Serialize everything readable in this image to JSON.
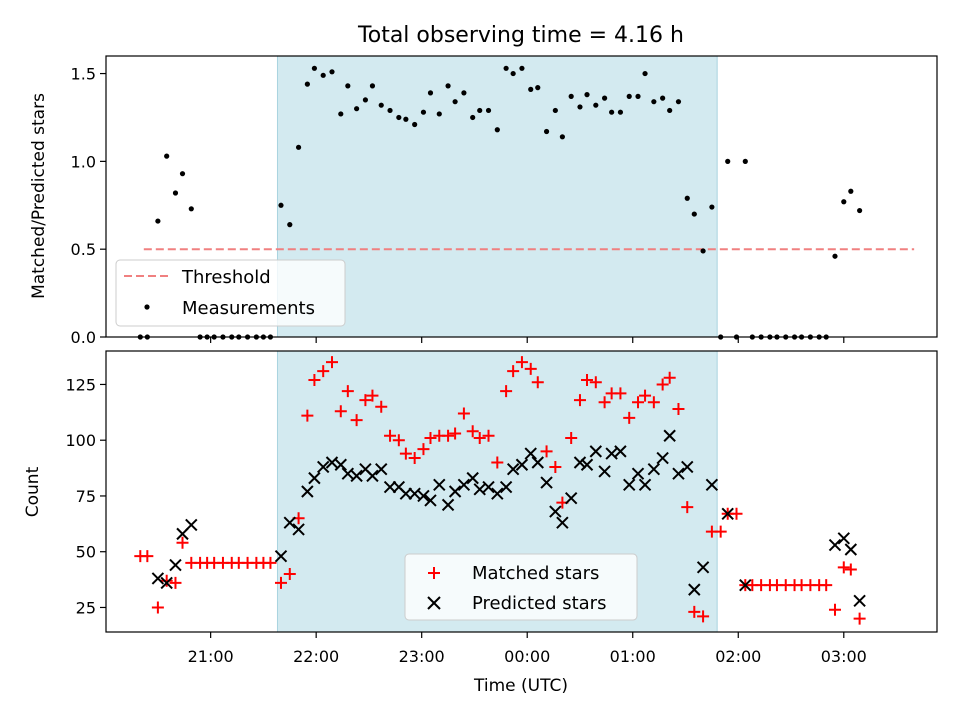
{
  "title": "Total observing time = 4.16 h",
  "xlabel": "Time (UTC)",
  "x_ticks": [
    "21:00",
    "22:00",
    "23:00",
    "00:00",
    "01:00",
    "02:00",
    "03:00"
  ],
  "colors": {
    "highlight": "#d3eaf0",
    "highlight_edge": "#a9d3df",
    "threshold": "#f08080",
    "measurement": "#000000",
    "matched": "#ff0000",
    "predicted": "#000000"
  },
  "chart_data": [
    {
      "type": "scatter",
      "ylabel": "Matched/Predicted stars",
      "ylim": [
        0,
        1.6
      ],
      "yticks": [
        0.0,
        0.5,
        1.0,
        1.5
      ],
      "highlight_x": [
        "21:38",
        "01:48"
      ],
      "threshold": {
        "value": 0.5,
        "x_range": [
          "20:22",
          "03:40"
        ]
      },
      "legend": {
        "position": "lower-left",
        "entries": [
          "Threshold",
          "Measurements"
        ]
      },
      "series": [
        {
          "name": "Measurements",
          "points": [
            [
              "20:20",
              0.0
            ],
            [
              "20:24",
              0.0
            ],
            [
              "20:30",
              0.66
            ],
            [
              "20:35",
              1.03
            ],
            [
              "20:40",
              0.82
            ],
            [
              "20:44",
              0.93
            ],
            [
              "20:49",
              0.73
            ],
            [
              "20:54",
              0.0
            ],
            [
              "20:58",
              0.0
            ],
            [
              "21:02",
              0.0
            ],
            [
              "21:07",
              0.0
            ],
            [
              "21:12",
              0.0
            ],
            [
              "21:16",
              0.0
            ],
            [
              "21:21",
              0.0
            ],
            [
              "21:26",
              0.0
            ],
            [
              "21:30",
              0.0
            ],
            [
              "21:34",
              0.0
            ],
            [
              "21:40",
              0.75
            ],
            [
              "21:45",
              0.64
            ],
            [
              "21:50",
              1.08
            ],
            [
              "21:55",
              1.44
            ],
            [
              "21:59",
              1.53
            ],
            [
              "22:04",
              1.49
            ],
            [
              "22:09",
              1.51
            ],
            [
              "22:14",
              1.27
            ],
            [
              "22:18",
              1.43
            ],
            [
              "22:23",
              1.3
            ],
            [
              "22:28",
              1.35
            ],
            [
              "22:32",
              1.43
            ],
            [
              "22:37",
              1.32
            ],
            [
              "22:42",
              1.29
            ],
            [
              "22:47",
              1.25
            ],
            [
              "22:51",
              1.24
            ],
            [
              "22:56",
              1.21
            ],
            [
              "23:01",
              1.28
            ],
            [
              "23:05",
              1.39
            ],
            [
              "23:10",
              1.27
            ],
            [
              "23:15",
              1.43
            ],
            [
              "23:19",
              1.34
            ],
            [
              "23:24",
              1.39
            ],
            [
              "23:29",
              1.25
            ],
            [
              "23:33",
              1.29
            ],
            [
              "23:38",
              1.29
            ],
            [
              "23:43",
              1.18
            ],
            [
              "23:48",
              1.53
            ],
            [
              "23:52",
              1.5
            ],
            [
              "23:57",
              1.53
            ],
            [
              "00:02",
              1.41
            ],
            [
              "00:06",
              1.42
            ],
            [
              "00:11",
              1.17
            ],
            [
              "00:16",
              1.29
            ],
            [
              "00:20",
              1.14
            ],
            [
              "00:25",
              1.37
            ],
            [
              "00:30",
              1.31
            ],
            [
              "00:34",
              1.38
            ],
            [
              "00:39",
              1.32
            ],
            [
              "00:44",
              1.36
            ],
            [
              "00:48",
              1.28
            ],
            [
              "00:53",
              1.28
            ],
            [
              "00:58",
              1.37
            ],
            [
              "01:03",
              1.37
            ],
            [
              "01:07",
              1.5
            ],
            [
              "01:12",
              1.34
            ],
            [
              "01:17",
              1.36
            ],
            [
              "01:21",
              1.29
            ],
            [
              "01:26",
              1.34
            ],
            [
              "01:31",
              0.79
            ],
            [
              "01:35",
              0.7
            ],
            [
              "01:40",
              0.49
            ],
            [
              "01:45",
              0.74
            ],
            [
              "01:50",
              0.0
            ],
            [
              "01:54",
              1.0
            ],
            [
              "01:59",
              0.0
            ],
            [
              "02:04",
              1.0
            ],
            [
              "02:08",
              0.0
            ],
            [
              "02:13",
              0.0
            ],
            [
              "02:18",
              0.0
            ],
            [
              "02:22",
              0.0
            ],
            [
              "02:27",
              0.0
            ],
            [
              "02:32",
              0.0
            ],
            [
              "02:36",
              0.0
            ],
            [
              "02:41",
              0.0
            ],
            [
              "02:46",
              0.0
            ],
            [
              "02:50",
              0.0
            ],
            [
              "02:55",
              0.46
            ],
            [
              "03:00",
              0.77
            ],
            [
              "03:04",
              0.83
            ],
            [
              "03:09",
              0.72
            ]
          ]
        }
      ]
    },
    {
      "type": "scatter",
      "ylabel": "Count",
      "ylim": [
        14,
        140
      ],
      "yticks": [
        25,
        50,
        75,
        100,
        125
      ],
      "highlight_x": [
        "21:38",
        "01:48"
      ],
      "legend": {
        "position": "lower-center",
        "entries": [
          "Matched stars",
          "Predicted stars"
        ]
      },
      "series": [
        {
          "name": "Matched stars",
          "marker": "plus",
          "points": [
            [
              "20:20",
              48
            ],
            [
              "20:24",
              48
            ],
            [
              "20:30",
              25
            ],
            [
              "20:35",
              37
            ],
            [
              "20:40",
              36
            ],
            [
              "20:44",
              54
            ],
            [
              "20:49",
              45
            ],
            [
              "20:54",
              45
            ],
            [
              "20:58",
              45
            ],
            [
              "21:02",
              45
            ],
            [
              "21:07",
              45
            ],
            [
              "21:12",
              45
            ],
            [
              "21:16",
              45
            ],
            [
              "21:21",
              45
            ],
            [
              "21:26",
              45
            ],
            [
              "21:30",
              45
            ],
            [
              "21:34",
              45
            ],
            [
              "21:40",
              36
            ],
            [
              "21:45",
              40
            ],
            [
              "21:50",
              65
            ],
            [
              "21:55",
              111
            ],
            [
              "21:59",
              127
            ],
            [
              "22:04",
              131
            ],
            [
              "22:09",
              135
            ],
            [
              "22:14",
              113
            ],
            [
              "22:18",
              122
            ],
            [
              "22:23",
              109
            ],
            [
              "22:28",
              118
            ],
            [
              "22:32",
              120
            ],
            [
              "22:37",
              115
            ],
            [
              "22:42",
              102
            ],
            [
              "22:47",
              100
            ],
            [
              "22:51",
              94
            ],
            [
              "22:56",
              92
            ],
            [
              "23:01",
              96
            ],
            [
              "23:05",
              101
            ],
            [
              "23:10",
              102
            ],
            [
              "23:15",
              102
            ],
            [
              "23:19",
              103
            ],
            [
              "23:24",
              112
            ],
            [
              "23:29",
              104
            ],
            [
              "23:33",
              101
            ],
            [
              "23:38",
              102
            ],
            [
              "23:43",
              90
            ],
            [
              "23:48",
              122
            ],
            [
              "23:52",
              131
            ],
            [
              "23:57",
              135
            ],
            [
              "00:02",
              132
            ],
            [
              "00:06",
              126
            ],
            [
              "00:11",
              95
            ],
            [
              "00:16",
              88
            ],
            [
              "00:20",
              72
            ],
            [
              "00:25",
              101
            ],
            [
              "00:30",
              118
            ],
            [
              "00:34",
              127
            ],
            [
              "00:39",
              126
            ],
            [
              "00:44",
              117
            ],
            [
              "00:48",
              121
            ],
            [
              "00:53",
              121
            ],
            [
              "00:58",
              110
            ],
            [
              "01:03",
              117
            ],
            [
              "01:07",
              120
            ],
            [
              "01:12",
              117
            ],
            [
              "01:17",
              125
            ],
            [
              "01:21",
              128
            ],
            [
              "01:26",
              114
            ],
            [
              "01:31",
              70
            ],
            [
              "01:35",
              23
            ],
            [
              "01:40",
              21
            ],
            [
              "01:45",
              59
            ],
            [
              "01:50",
              59
            ],
            [
              "01:54",
              67
            ],
            [
              "01:59",
              67
            ],
            [
              "02:04",
              35
            ],
            [
              "02:08",
              35
            ],
            [
              "02:13",
              35
            ],
            [
              "02:18",
              35
            ],
            [
              "02:22",
              35
            ],
            [
              "02:27",
              35
            ],
            [
              "02:32",
              35
            ],
            [
              "02:36",
              35
            ],
            [
              "02:41",
              35
            ],
            [
              "02:46",
              35
            ],
            [
              "02:50",
              35
            ],
            [
              "02:55",
              24
            ],
            [
              "03:00",
              43
            ],
            [
              "03:04",
              42
            ],
            [
              "03:09",
              20
            ]
          ]
        },
        {
          "name": "Predicted stars",
          "marker": "x",
          "points": [
            [
              "20:30",
              38
            ],
            [
              "20:35",
              36
            ],
            [
              "20:40",
              44
            ],
            [
              "20:44",
              58
            ],
            [
              "20:49",
              62
            ],
            [
              "21:40",
              48
            ],
            [
              "21:45",
              63
            ],
            [
              "21:50",
              60
            ],
            [
              "21:55",
              77
            ],
            [
              "21:59",
              83
            ],
            [
              "22:04",
              88
            ],
            [
              "22:09",
              90
            ],
            [
              "22:14",
              89
            ],
            [
              "22:18",
              85
            ],
            [
              "22:23",
              84
            ],
            [
              "22:28",
              87
            ],
            [
              "22:32",
              84
            ],
            [
              "22:37",
              87
            ],
            [
              "22:42",
              79
            ],
            [
              "22:47",
              79
            ],
            [
              "22:51",
              76
            ],
            [
              "22:56",
              76
            ],
            [
              "23:01",
              75
            ],
            [
              "23:05",
              73
            ],
            [
              "23:10",
              80
            ],
            [
              "23:15",
              71
            ],
            [
              "23:19",
              77
            ],
            [
              "23:24",
              80
            ],
            [
              "23:29",
              83
            ],
            [
              "23:33",
              78
            ],
            [
              "23:38",
              79
            ],
            [
              "23:43",
              76
            ],
            [
              "23:48",
              79
            ],
            [
              "23:52",
              87
            ],
            [
              "23:57",
              89
            ],
            [
              "00:02",
              94
            ],
            [
              "00:06",
              90
            ],
            [
              "00:11",
              81
            ],
            [
              "00:16",
              68
            ],
            [
              "00:20",
              63
            ],
            [
              "00:25",
              74
            ],
            [
              "00:30",
              90
            ],
            [
              "00:34",
              89
            ],
            [
              "00:39",
              95
            ],
            [
              "00:44",
              86
            ],
            [
              "00:48",
              94
            ],
            [
              "00:53",
              95
            ],
            [
              "00:58",
              80
            ],
            [
              "01:03",
              85
            ],
            [
              "01:07",
              80
            ],
            [
              "01:12",
              87
            ],
            [
              "01:17",
              92
            ],
            [
              "01:21",
              102
            ],
            [
              "01:26",
              85
            ],
            [
              "01:31",
              88
            ],
            [
              "01:35",
              33
            ],
            [
              "01:40",
              43
            ],
            [
              "01:45",
              80
            ],
            [
              "01:54",
              67
            ],
            [
              "02:04",
              35
            ],
            [
              "02:55",
              53
            ],
            [
              "03:00",
              56
            ],
            [
              "03:04",
              51
            ],
            [
              "03:09",
              28
            ]
          ]
        }
      ]
    }
  ]
}
